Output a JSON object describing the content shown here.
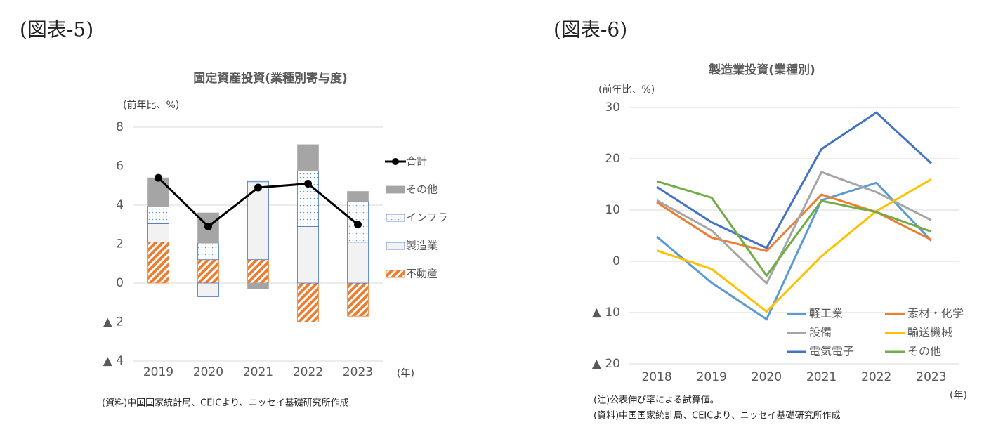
{
  "chart_data": [
    {
      "type": "bar",
      "stacked": true,
      "figure_label": "(図表-5)",
      "title": "固定資産投資(業種別寄与度)",
      "y_label": "(前年比、%)",
      "x_unit": "(年)",
      "notes": [
        "(資料)中国国家統計局、CEICより、ニッセイ基礎研究所作成"
      ],
      "categories": [
        "2019",
        "2020",
        "2021",
        "2022",
        "2023"
      ],
      "series": [
        {
          "name": "不動産",
          "color": "#ed7d31",
          "pattern": "hatch",
          "values": [
            2.1,
            1.2,
            1.2,
            -2.0,
            -1.7
          ]
        },
        {
          "name": "製造業",
          "color": "#f2f2f2",
          "pattern": "solid",
          "values": [
            0.95,
            -0.7,
            4.0,
            2.9,
            2.1
          ]
        },
        {
          "name": "インフラ",
          "color": "#5b9bd5",
          "pattern": "dots",
          "values": [
            0.9,
            0.85,
            0.05,
            2.85,
            2.1
          ]
        },
        {
          "name": "その他",
          "color": "#a5a5a5",
          "pattern": "solid",
          "values": [
            1.45,
            1.55,
            -0.3,
            1.35,
            0.5
          ]
        },
        {
          "name": "合計",
          "color": "#000000",
          "type": "line",
          "values": [
            5.4,
            2.9,
            4.9,
            5.1,
            3.0
          ]
        }
      ],
      "ylim": [
        -4,
        8
      ],
      "yticks": [
        8,
        6,
        4,
        2,
        0,
        {
          "value": -2,
          "label": "▲ 2"
        },
        {
          "value": -4,
          "label": "▲ 4"
        }
      ],
      "grid": true,
      "legend": "right"
    },
    {
      "type": "line",
      "figure_label": "(図表-6)",
      "title": "製造業投資(業種別)",
      "y_label": "(前年比、%)",
      "x_unit": "(年)",
      "notes": [
        "(注)公表伸び率による試算値。",
        "(資料)中国国家統計局、CEICより、ニッセイ基礎研究所作成"
      ],
      "categories": [
        "2018",
        "2019",
        "2020",
        "2021",
        "2022",
        "2023"
      ],
      "series": [
        {
          "name": "軽工業",
          "color": "#5b9bd5",
          "values": [
            4.8,
            -4.2,
            -11.3,
            11.9,
            15.3,
            4.0
          ]
        },
        {
          "name": "素材・化学",
          "color": "#ed7d31",
          "values": [
            11.5,
            4.6,
            2.0,
            13.0,
            9.6,
            4.2
          ]
        },
        {
          "name": "設備",
          "color": "#a5a5a5",
          "values": [
            11.9,
            6.0,
            -4.3,
            17.4,
            13.5,
            8.0
          ]
        },
        {
          "name": "輸送機械",
          "color": "#ffc000",
          "values": [
            2.1,
            -1.5,
            -9.8,
            1.0,
            9.8,
            16.0
          ]
        },
        {
          "name": "電気電子",
          "color": "#4472c4",
          "values": [
            14.5,
            7.6,
            2.6,
            21.9,
            29.0,
            19.1
          ]
        },
        {
          "name": "その他",
          "color": "#70ad47",
          "values": [
            15.6,
            12.4,
            -2.8,
            11.8,
            9.6,
            5.8
          ]
        }
      ],
      "ylim": [
        -20,
        30
      ],
      "yticks": [
        30,
        20,
        10,
        0,
        {
          "value": -10,
          "label": "▲ 10"
        },
        {
          "value": -20,
          "label": "▲ 20"
        }
      ],
      "grid": true,
      "legend": "lower right"
    }
  ]
}
